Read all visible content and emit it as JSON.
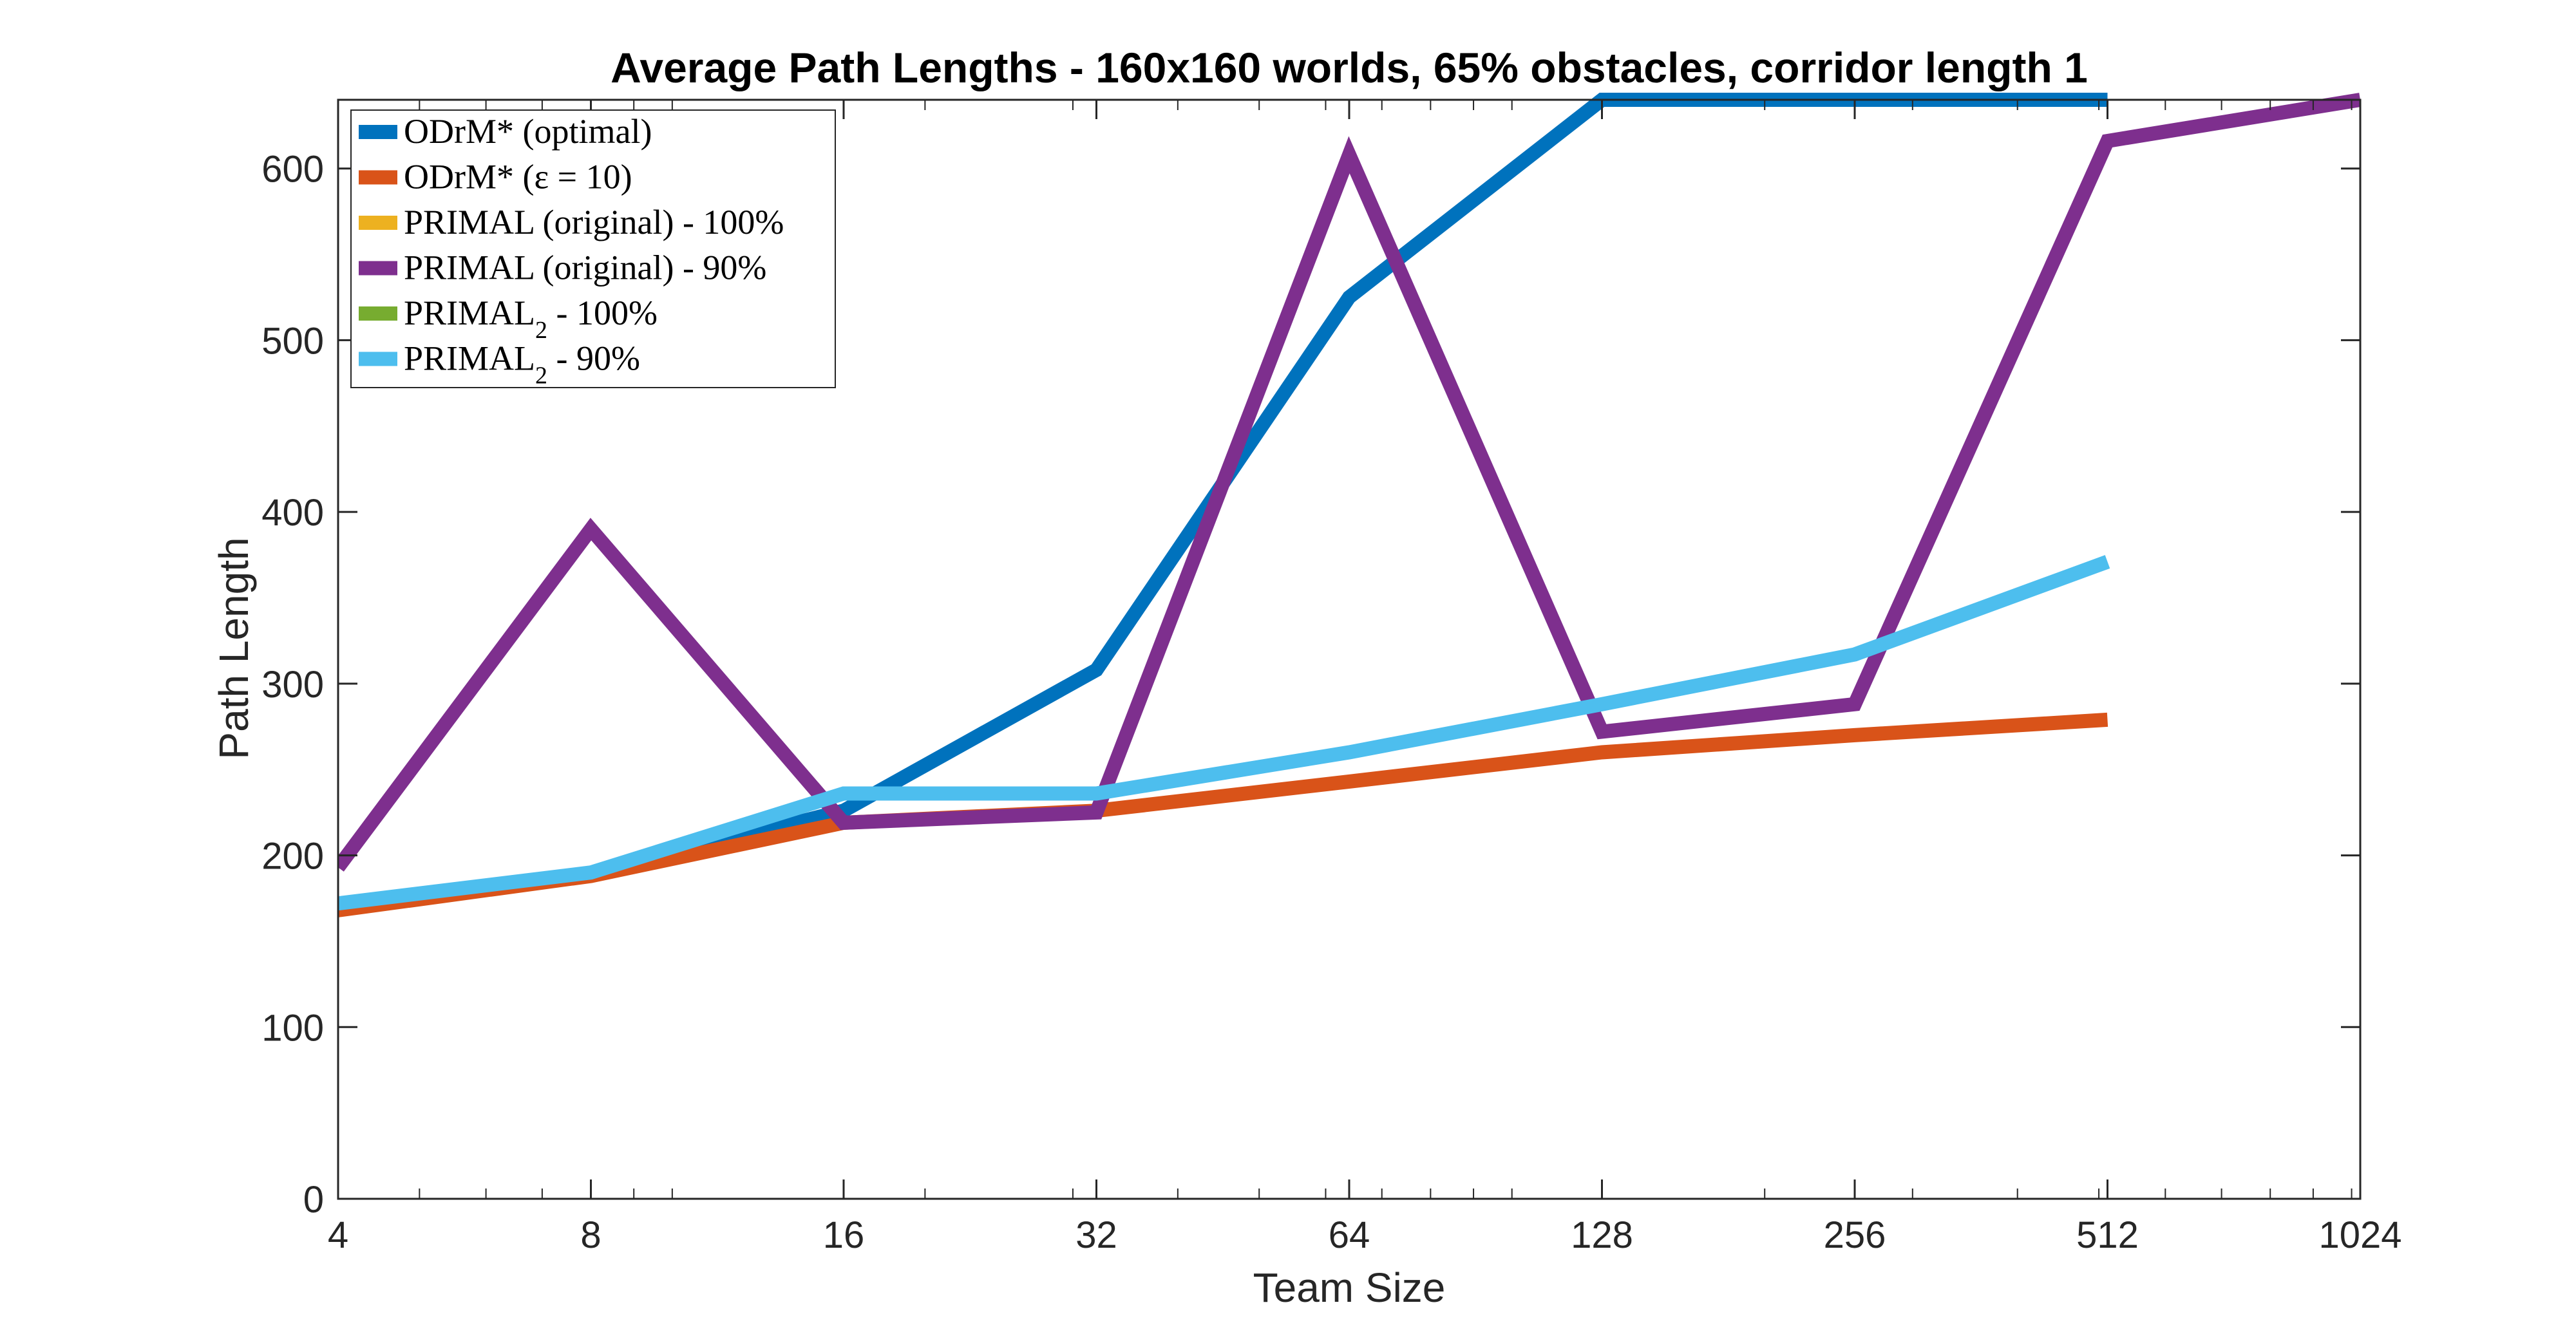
{
  "chart_data": {
    "type": "line",
    "title": "Average Path Lengths - 160x160 worlds, 65% obstacles, corridor length 1",
    "xlabel": "Team Size",
    "ylabel": "Path Length",
    "xscale": "log2",
    "xlim": [
      4,
      1024
    ],
    "ylim": [
      0,
      640
    ],
    "xticks": [
      4,
      8,
      16,
      32,
      64,
      128,
      256,
      512,
      1024
    ],
    "xtick_labels": [
      "4",
      "8",
      "16",
      "32",
      "64",
      "128",
      "256",
      "512",
      "1024"
    ],
    "yticks": [
      0,
      100,
      200,
      300,
      400,
      500,
      600
    ],
    "ytick_labels": [
      "0",
      "100",
      "200",
      "300",
      "400",
      "500",
      "600"
    ],
    "grid": false,
    "legend_position": "top-left",
    "series": [
      {
        "name": "ODrM* (optimal)",
        "legend_parts": [
          [
            "ODrM* (optimal)",
            ""
          ]
        ],
        "color": "#0072BD",
        "x": [
          4,
          8,
          16,
          32,
          64,
          128,
          256,
          512
        ],
        "y": [
          170,
          189,
          226,
          308,
          525,
          640,
          640,
          640
        ]
      },
      {
        "name": "ODrM* (ε = 10)",
        "legend_parts": [
          [
            "ODrM* (ε = 10)",
            ""
          ]
        ],
        "color": "#D95319",
        "x": [
          4,
          8,
          16,
          32,
          64,
          128,
          256,
          512
        ],
        "y": [
          168,
          188,
          219,
          226,
          243,
          260,
          270,
          279
        ]
      },
      {
        "name": "PRIMAL (original) - 100%",
        "legend_parts": [
          [
            "PRIMAL (original) - 100%",
            ""
          ]
        ],
        "color": "#EDB120",
        "x": [],
        "y": []
      },
      {
        "name": "PRIMAL (original) - 90%",
        "legend_parts": [
          [
            "PRIMAL (original) - 90%",
            ""
          ]
        ],
        "color": "#7E2F8E",
        "x": [
          4,
          8,
          16,
          32,
          64,
          128,
          256,
          512,
          1024
        ],
        "y": [
          193,
          390,
          219,
          225,
          608,
          272,
          288,
          616,
          640
        ]
      },
      {
        "name": "PRIMAL2 - 100%",
        "legend_parts": [
          [
            "PRIMAL",
            ""
          ],
          [
            "2",
            "sub"
          ],
          [
            " - 100%",
            ""
          ]
        ],
        "color": "#77AC30",
        "x": [],
        "y": []
      },
      {
        "name": "PRIMAL2 - 90%",
        "legend_parts": [
          [
            "PRIMAL",
            ""
          ],
          [
            "2",
            "sub"
          ],
          [
            " - 90%",
            ""
          ]
        ],
        "color": "#4DBEEE",
        "x": [
          4,
          8,
          16,
          32,
          64,
          128,
          256,
          512
        ],
        "y": [
          172,
          190,
          236,
          236,
          260,
          288,
          317,
          371
        ]
      }
    ]
  }
}
